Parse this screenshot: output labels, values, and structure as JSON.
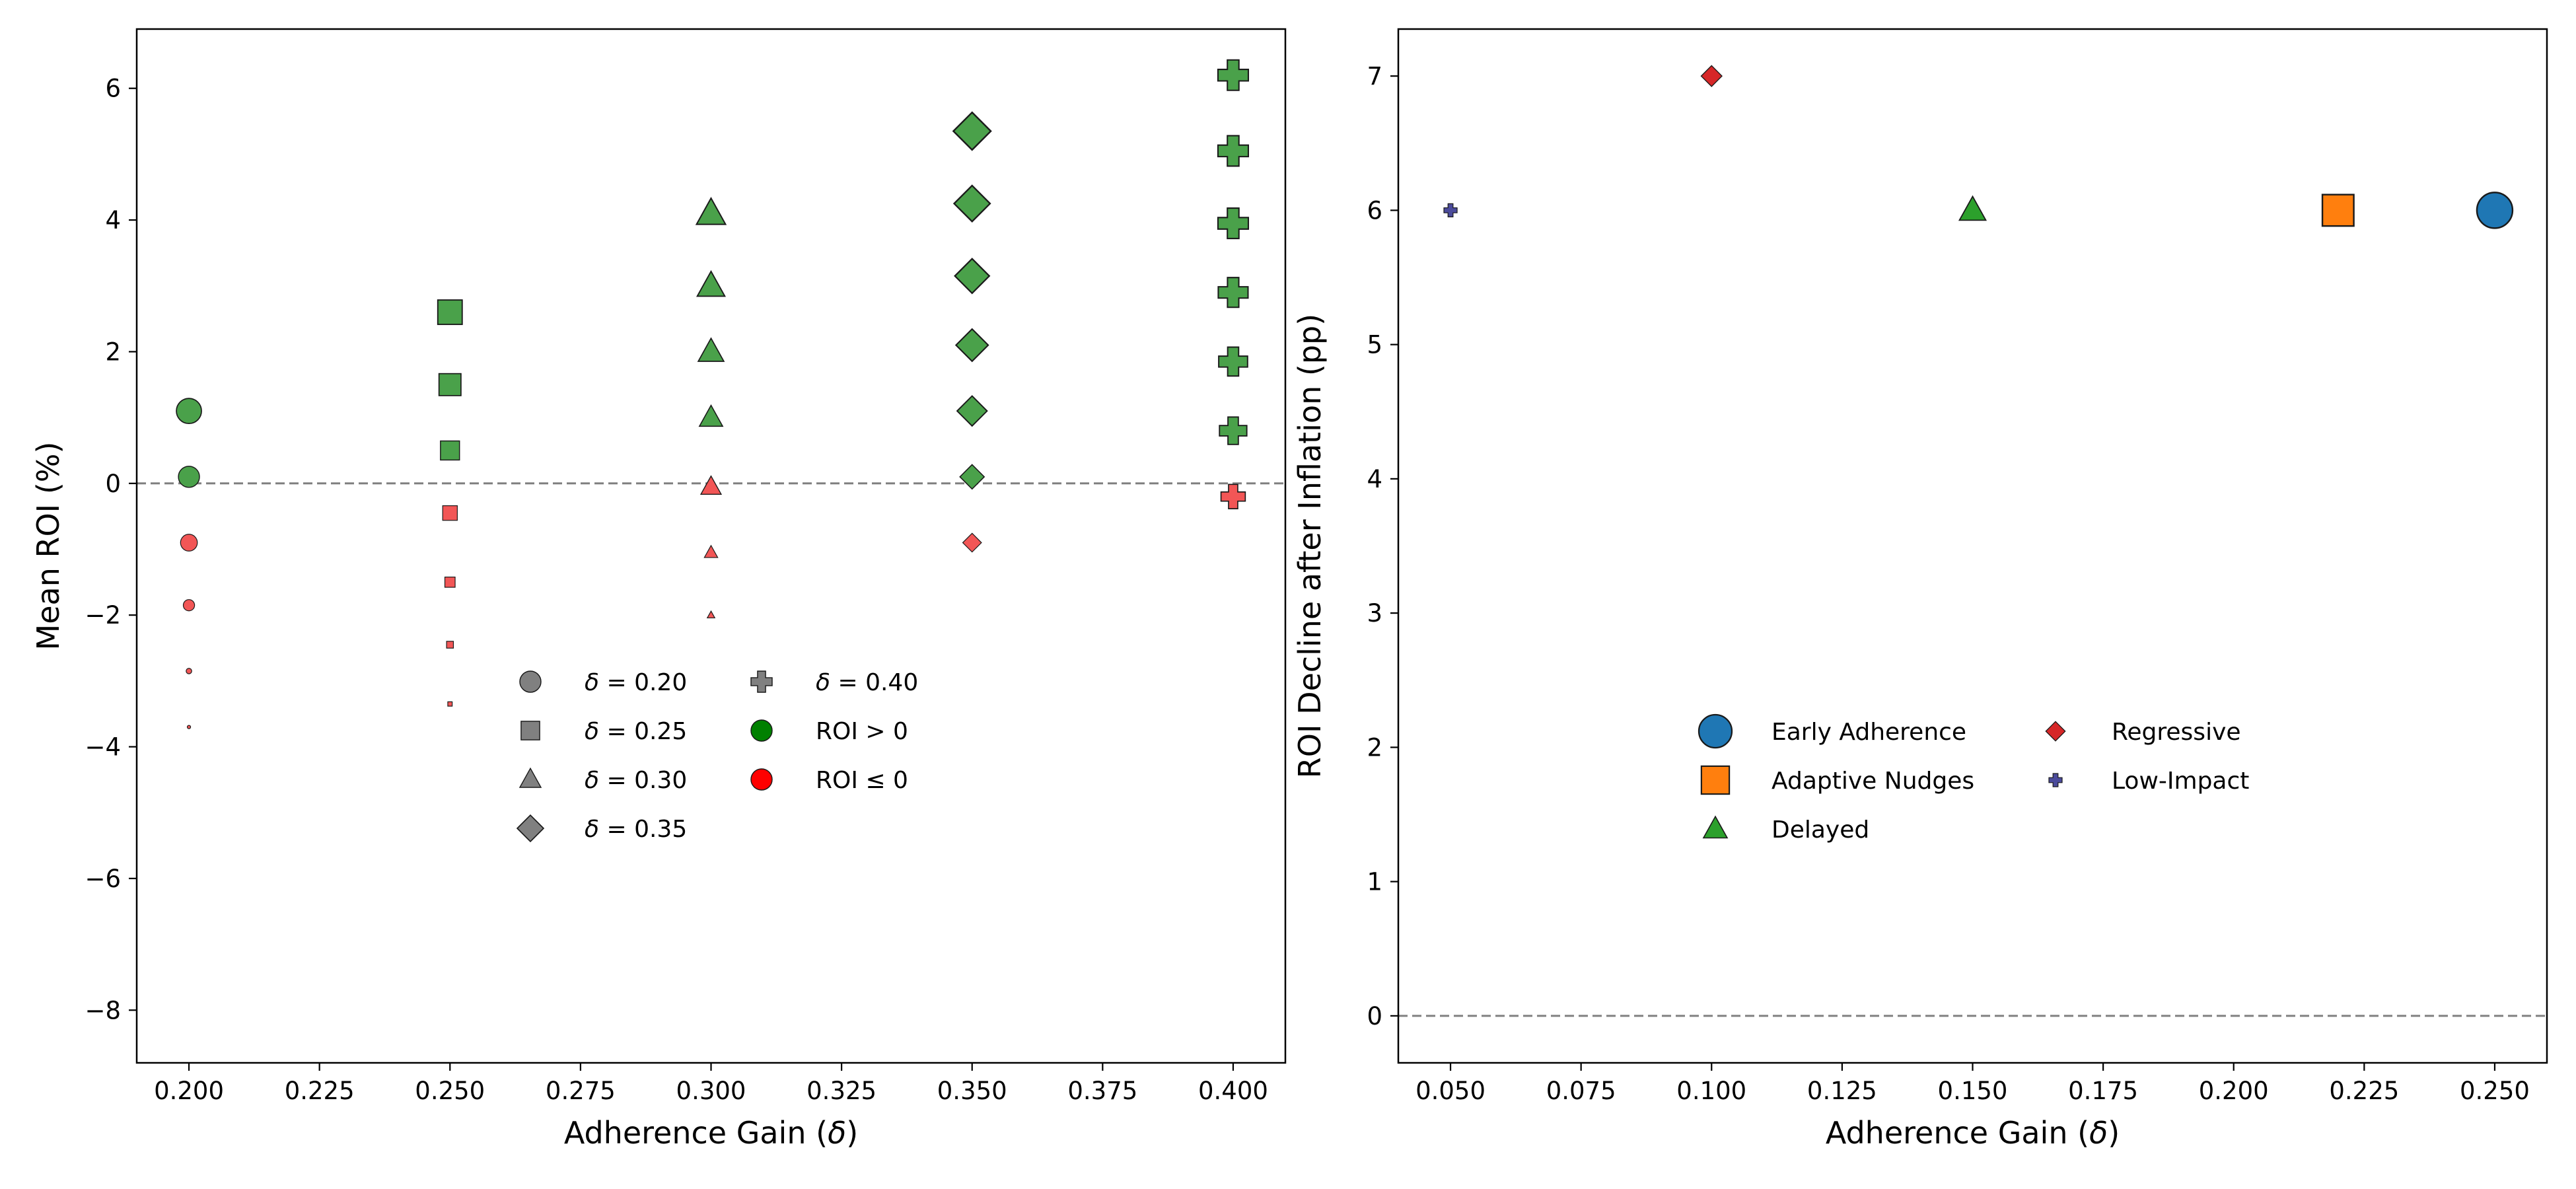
{
  "chart_data": [
    {
      "type": "scatter",
      "xlabel": "Adherence Gain (δ)",
      "ylabel": "Mean ROI (%)",
      "xlim": [
        0.19,
        0.41
      ],
      "ylim": [
        -8.8,
        6.9
      ],
      "xticks": [
        "0.200",
        "0.225",
        "0.250",
        "0.275",
        "0.300",
        "0.325",
        "0.350",
        "0.375",
        "0.400"
      ],
      "yticks": [
        "−8",
        "−6",
        "−4",
        "−2",
        "0",
        "2",
        "4",
        "6"
      ],
      "reference_line": {
        "y": 0,
        "style": "dashed",
        "color": "#808080"
      },
      "colors": {
        "positive": "#4aa14a",
        "negative": "#f25656",
        "edge": "#2a4a2a"
      },
      "series": [
        {
          "delta": 0.2,
          "marker": "circle",
          "points": [
            {
              "y": 1.1,
              "s": 1.0
            },
            {
              "y": 0.1,
              "s": 0.84
            },
            {
              "y": -0.9,
              "s": 0.67
            },
            {
              "y": -1.85,
              "s": 0.45
            },
            {
              "y": -2.85,
              "s": 0.22
            },
            {
              "y": -3.7,
              "s": 0.1
            }
          ]
        },
        {
          "delta": 0.25,
          "marker": "square",
          "points": [
            {
              "y": 2.6,
              "s": 1.0
            },
            {
              "y": 1.5,
              "s": 0.9
            },
            {
              "y": 0.5,
              "s": 0.78
            },
            {
              "y": -0.45,
              "s": 0.6
            },
            {
              "y": -1.5,
              "s": 0.42
            },
            {
              "y": -2.45,
              "s": 0.28
            },
            {
              "y": -3.35,
              "s": 0.18
            }
          ]
        },
        {
          "delta": 0.3,
          "marker": "triangle",
          "points": [
            {
              "y": 4.1,
              "s": 1.0
            },
            {
              "y": 3.0,
              "s": 0.95
            },
            {
              "y": 2.0,
              "s": 0.88
            },
            {
              "y": 1.0,
              "s": 0.8
            },
            {
              "y": -0.05,
              "s": 0.7
            },
            {
              "y": -1.05,
              "s": 0.46
            },
            {
              "y": -2.0,
              "s": 0.26
            }
          ]
        },
        {
          "delta": 0.35,
          "marker": "diamond",
          "points": [
            {
              "y": 5.35,
              "s": 1.0
            },
            {
              "y": 4.25,
              "s": 0.96
            },
            {
              "y": 3.15,
              "s": 0.92
            },
            {
              "y": 2.1,
              "s": 0.86
            },
            {
              "y": 1.1,
              "s": 0.8
            },
            {
              "y": 0.1,
              "s": 0.65
            },
            {
              "y": -0.9,
              "s": 0.5
            }
          ]
        },
        {
          "delta": 0.4,
          "marker": "plus",
          "points": [
            {
              "y": 6.2,
              "s": 1.0
            },
            {
              "y": 5.05,
              "s": 1.0
            },
            {
              "y": 3.95,
              "s": 1.0
            },
            {
              "y": 2.9,
              "s": 0.98
            },
            {
              "y": 1.85,
              "s": 0.95
            },
            {
              "y": 0.8,
              "s": 0.9
            },
            {
              "y": -0.2,
              "s": 0.8
            }
          ]
        }
      ],
      "legend": {
        "location": "lower-center",
        "entries": [
          {
            "marker": "circle",
            "color": "#808080",
            "label_prefix": "δ",
            "label": "= 0.20"
          },
          {
            "marker": "square",
            "color": "#808080",
            "label_prefix": "δ",
            "label": "= 0.25"
          },
          {
            "marker": "triangle",
            "color": "#808080",
            "label_prefix": "δ",
            "label": "= 0.30"
          },
          {
            "marker": "diamond",
            "color": "#808080",
            "label_prefix": "δ",
            "label": "= 0.35"
          },
          {
            "marker": "plus",
            "color": "#808080",
            "label_prefix": "δ",
            "label": "= 0.40"
          },
          {
            "marker": "circle",
            "color": "#008000",
            "label": "ROI > 0"
          },
          {
            "marker": "circle",
            "color": "#ff0000",
            "label": "ROI ≤ 0"
          }
        ]
      }
    },
    {
      "type": "scatter",
      "xlabel": "Adherence Gain (δ)",
      "ylabel": "ROI Decline after Inflation (pp)",
      "xlim": [
        0.04,
        0.26
      ],
      "ylim": [
        -0.35,
        7.35
      ],
      "xticks": [
        "0.050",
        "0.075",
        "0.100",
        "0.125",
        "0.150",
        "0.175",
        "0.200",
        "0.225",
        "0.250"
      ],
      "yticks": [
        "0",
        "1",
        "2",
        "3",
        "4",
        "5",
        "6",
        "7"
      ],
      "reference_line": {
        "y": 0,
        "style": "dashed",
        "color": "#808080"
      },
      "points": [
        {
          "name": "Early Adherence",
          "x": 0.25,
          "y": 6,
          "marker": "circle",
          "color": "#1f77b4",
          "s": 1.0
        },
        {
          "name": "Adaptive Nudges",
          "x": 0.22,
          "y": 6,
          "marker": "square",
          "color": "#ff7f0e",
          "s": 0.88
        },
        {
          "name": "Delayed",
          "x": 0.15,
          "y": 6,
          "marker": "triangle",
          "color": "#2ca02c",
          "s": 0.66
        },
        {
          "name": "Regressive",
          "x": 0.1,
          "y": 7,
          "marker": "diamond",
          "color": "#d62728",
          "s": 0.45
        },
        {
          "name": "Low-Impact",
          "x": 0.05,
          "y": 6,
          "marker": "plus",
          "color": "#4b4b9b",
          "s": 0.3
        }
      ],
      "legend": {
        "location": "lower-center",
        "entries": [
          {
            "marker": "circle",
            "color": "#1f77b4",
            "label": "Early Adherence"
          },
          {
            "marker": "square",
            "color": "#ff7f0e",
            "label": "Adaptive Nudges"
          },
          {
            "marker": "triangle",
            "color": "#2ca02c",
            "label": "Delayed"
          },
          {
            "marker": "diamond",
            "color": "#d62728",
            "label": "Regressive"
          },
          {
            "marker": "plus",
            "color": "#4b4b9b",
            "label": "Low-Impact"
          }
        ]
      }
    }
  ]
}
